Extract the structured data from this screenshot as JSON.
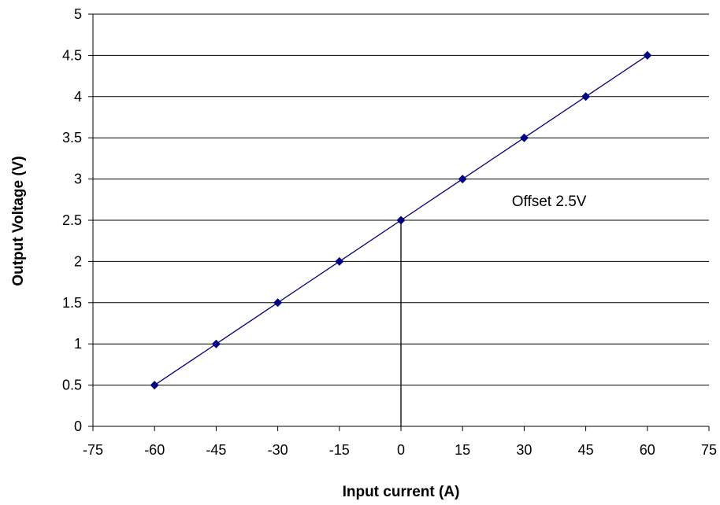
{
  "chart_data": {
    "type": "line",
    "title": "",
    "xlabel": "Input current (A)",
    "ylabel": "Output Voltage (V)",
    "xlim": [
      -75,
      75
    ],
    "ylim": [
      0,
      5
    ],
    "x_ticks": [
      -75,
      -60,
      -45,
      -30,
      -15,
      0,
      15,
      30,
      45,
      60,
      75
    ],
    "x_tick_labels": [
      "-75",
      "-60",
      "-45",
      "-30",
      "-15",
      "0",
      "15",
      "30",
      "45",
      "60",
      "75"
    ],
    "y_ticks": [
      0,
      0.5,
      1,
      1.5,
      2,
      2.5,
      3,
      3.5,
      4,
      4.5,
      5
    ],
    "y_tick_labels": [
      "0",
      "0.5",
      "1",
      "1.5",
      "2",
      "2.5",
      "3",
      "3.5",
      "4",
      "4.5",
      "5"
    ],
    "grid": "horizontal",
    "legend": "none",
    "series": [
      {
        "x": [
          -60,
          -45,
          -30,
          -15,
          0,
          15,
          30,
          45,
          60
        ],
        "y": [
          0.5,
          1,
          1.5,
          2,
          2.5,
          3,
          3.5,
          4,
          4.5
        ],
        "color": "#000080",
        "marker": "diamond"
      }
    ],
    "annotations": [
      {
        "text": "Offset 2.5V",
        "x": 27,
        "y": 2.67
      }
    ],
    "reference_line": {
      "x": 0,
      "y_from": 0,
      "y_to": 2.5,
      "color": "#000000"
    }
  }
}
